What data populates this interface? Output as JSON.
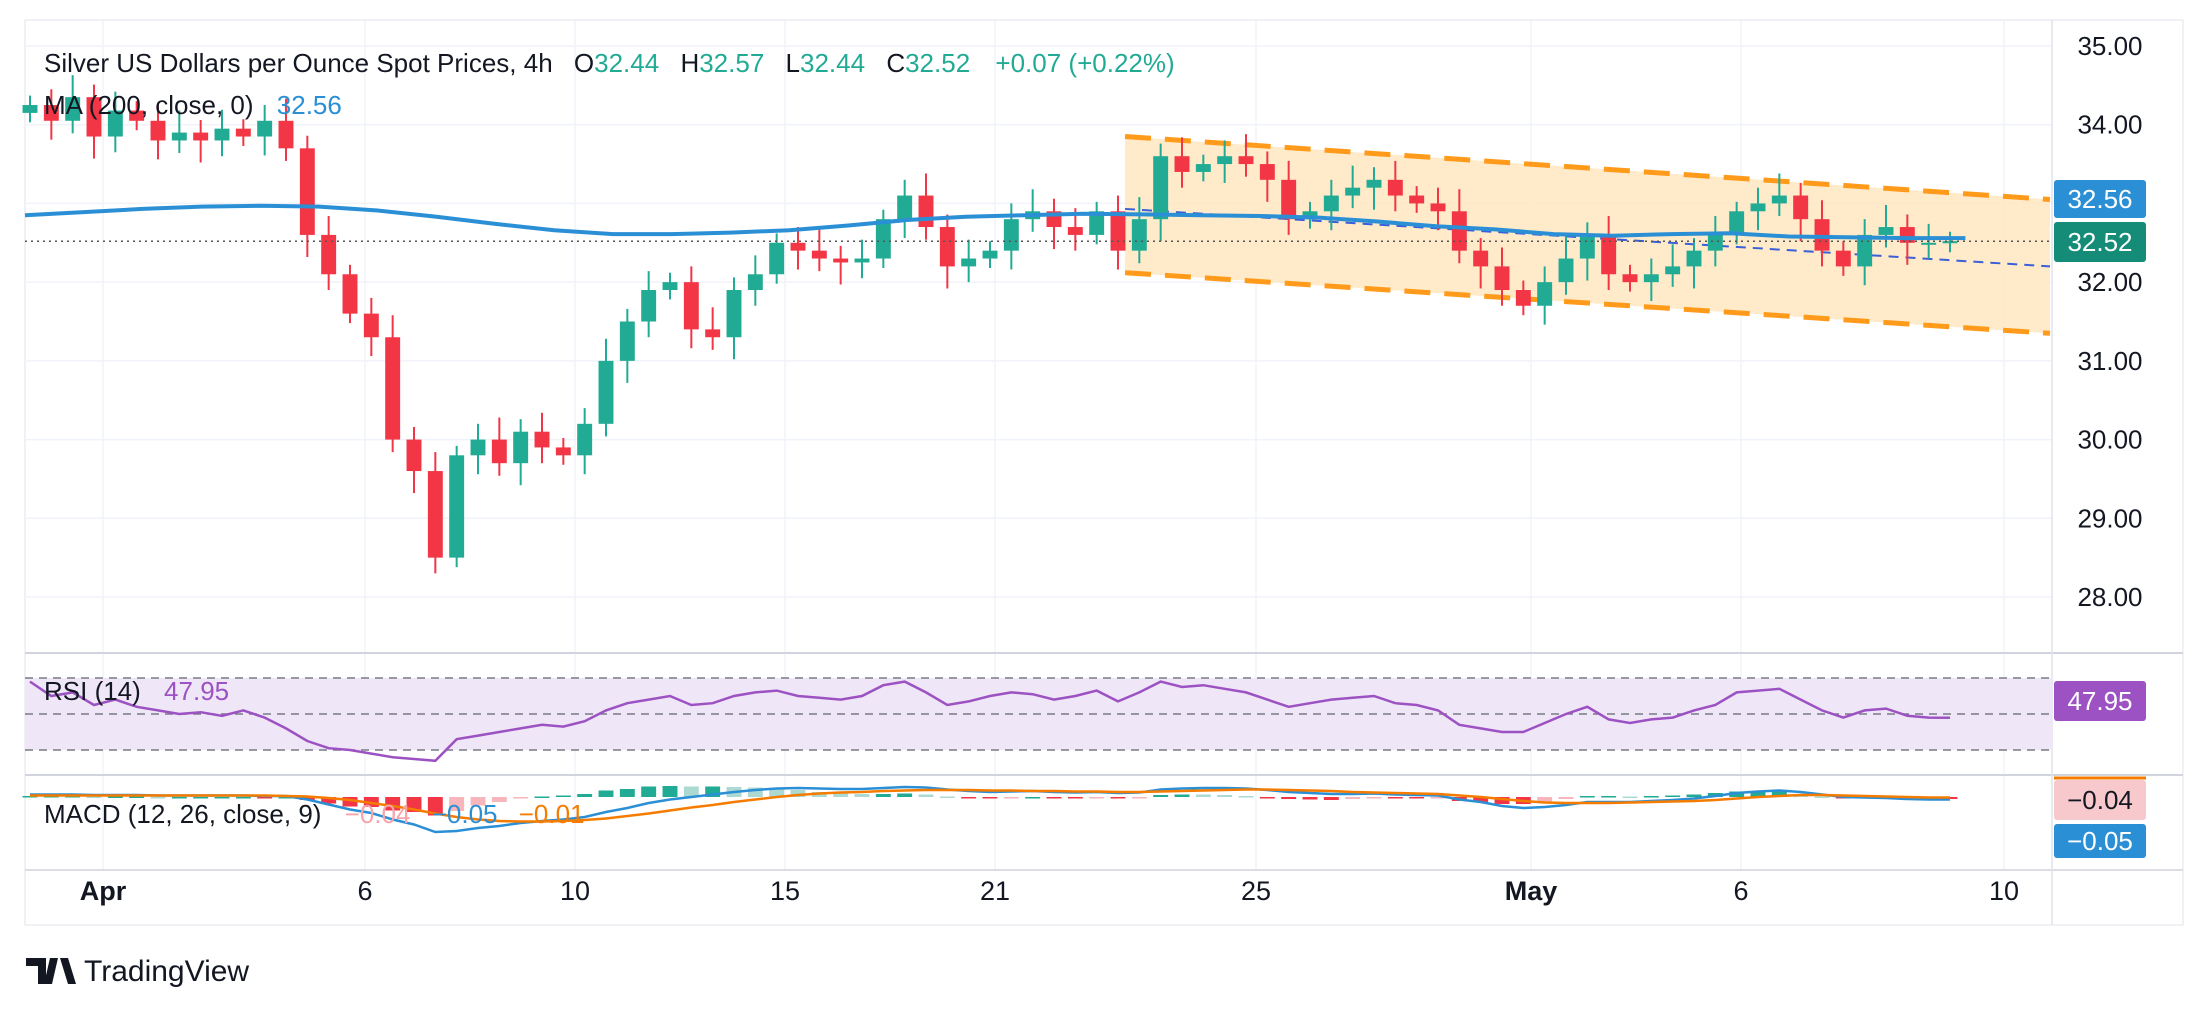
{
  "header": {
    "symbol": "Silver US Dollars per Ounce Spot Prices, 4h",
    "o_label": "O",
    "o_value": "32.44",
    "h_label": "H",
    "h_value": "32.57",
    "l_label": "L",
    "l_value": "32.44",
    "c_label": "C",
    "c_value": "32.52",
    "change": "+0.07 (+0.22%)"
  },
  "ma_legend": {
    "label": "MA (200, close, 0)",
    "value": "32.56"
  },
  "rsi_legend": {
    "label": "RSI (14)",
    "value": "47.95"
  },
  "macd_legend": {
    "label": "MACD (12, 26, close, 9)",
    "hist": "−0.04",
    "macd": "−0.05",
    "signal": "−0.01"
  },
  "badges": {
    "ma": "32.56",
    "close": "32.52",
    "rsi": "47.95",
    "macd_hist": "−0.04",
    "macd": "−0.05"
  },
  "brand": {
    "name": "TradingView"
  },
  "colors": {
    "up": "#22ab94",
    "down": "#f23645",
    "ma": "#2b8fd6",
    "rsi": "#9c52c2",
    "rsi_band": "#efe6f7",
    "channel_fill": "#ffe6c0",
    "channel_line": "#ff9a1a",
    "trend_dash": "#3a5fd9",
    "macd_line": "#2b8fd6",
    "signal_line": "#f57c00",
    "close_badge": "#148c78",
    "ma_badge": "#2b8fd6",
    "rsi_badge": "#9c52c2",
    "text": "#131722",
    "axis_text": "#131722",
    "grid": "#f0f3fa"
  },
  "chart_data": [
    {
      "type": "candlestick",
      "title": "Silver US Dollars per Ounce Spot Prices, 4h",
      "x_tick_labels": [
        "Apr",
        "6",
        "10",
        "15",
        "21",
        "25",
        "May",
        "6",
        "10"
      ],
      "y_ticks": [
        35.0,
        34.0,
        33.0,
        32.0,
        31.0,
        30.0,
        29.0,
        28.0
      ],
      "ylim": [
        27.3,
        35.2
      ],
      "grid": true,
      "last_close": 32.52,
      "ma200_last": 32.56,
      "ma200": [
        32.85,
        32.89,
        32.93,
        32.96,
        32.97,
        32.96,
        32.91,
        32.83,
        32.74,
        32.66,
        32.61,
        32.61,
        32.63,
        32.66,
        32.72,
        32.79,
        32.83,
        32.85,
        32.87,
        32.86,
        32.85,
        32.84,
        32.82,
        32.77,
        32.71,
        32.67,
        32.61,
        32.59,
        32.61,
        32.62,
        32.58,
        32.57,
        32.56,
        32.56
      ],
      "closes": [
        34.25,
        34.05,
        34.35,
        33.85,
        34.18,
        34.05,
        33.8,
        33.9,
        33.8,
        33.95,
        33.85,
        34.05,
        33.7,
        32.6,
        32.1,
        31.6,
        31.3,
        30.0,
        29.6,
        28.5,
        29.8,
        30.0,
        29.7,
        30.1,
        29.9,
        29.8,
        30.2,
        31.0,
        31.5,
        31.9,
        32.0,
        31.4,
        31.3,
        31.9,
        32.1,
        32.5,
        32.4,
        32.3,
        32.25,
        32.3,
        32.8,
        33.1,
        32.7,
        32.2,
        32.3,
        32.4,
        32.8,
        32.9,
        32.7,
        32.6,
        32.9,
        32.4,
        32.8,
        33.6,
        33.4,
        33.5,
        33.6,
        33.5,
        33.3,
        32.8,
        32.9,
        33.1,
        33.2,
        33.3,
        33.1,
        33.0,
        32.9,
        32.4,
        32.2,
        31.9,
        31.7,
        32.0,
        32.3,
        32.6,
        32.1,
        32.0,
        32.1,
        32.2,
        32.4,
        32.6,
        32.9,
        33.0,
        33.1,
        32.8,
        32.4,
        32.2,
        32.6,
        32.7,
        32.5,
        32.5,
        32.52
      ],
      "trend_channel": {
        "upper": [
          33.85,
          33.05
        ],
        "lower": [
          32.12,
          31.35
        ]
      }
    },
    {
      "type": "line",
      "title": "RSI (14)",
      "last_value": 47.95,
      "bands": [
        70,
        50,
        30
      ],
      "values": [
        68,
        60,
        62,
        55,
        58,
        54,
        52,
        50,
        51,
        49,
        52,
        48,
        42,
        35,
        31,
        30,
        28,
        26,
        25,
        24,
        36,
        38,
        40,
        42,
        44,
        43,
        46,
        52,
        56,
        58,
        60,
        55,
        56,
        60,
        62,
        63,
        60,
        59,
        58,
        60,
        66,
        68,
        62,
        55,
        57,
        60,
        62,
        61,
        58,
        60,
        63,
        57,
        62,
        68,
        65,
        66,
        64,
        62,
        58,
        54,
        56,
        58,
        59,
        60,
        56,
        55,
        52,
        44,
        42,
        40,
        40,
        45,
        50,
        54,
        47,
        45,
        47,
        48,
        52,
        55,
        62,
        63,
        64,
        58,
        52,
        48,
        52,
        53,
        49,
        48,
        47.95
      ]
    },
    {
      "type": "bar+line",
      "title": "MACD (12, 26, close, 9)",
      "histogram_last": -0.04,
      "macd_last": -0.05,
      "signal_last": -0.01,
      "macd": [
        0.05,
        0.05,
        0.05,
        0.04,
        0.04,
        0.04,
        0.03,
        0.03,
        0.03,
        0.03,
        0.03,
        0.02,
        0.02,
        -0.05,
        -0.15,
        -0.25,
        -0.32,
        -0.45,
        -0.55,
        -0.7,
        -0.68,
        -0.62,
        -0.58,
        -0.52,
        -0.48,
        -0.45,
        -0.4,
        -0.3,
        -0.22,
        -0.12,
        -0.05,
        0.0,
        0.05,
        0.1,
        0.14,
        0.17,
        0.18,
        0.17,
        0.16,
        0.16,
        0.18,
        0.2,
        0.19,
        0.15,
        0.12,
        0.1,
        0.11,
        0.12,
        0.1,
        0.09,
        0.1,
        0.08,
        0.09,
        0.15,
        0.17,
        0.18,
        0.18,
        0.17,
        0.14,
        0.1,
        0.08,
        0.06,
        0.06,
        0.07,
        0.05,
        0.04,
        0.03,
        -0.05,
        -0.1,
        -0.18,
        -0.22,
        -0.2,
        -0.16,
        -0.1,
        -0.1,
        -0.1,
        -0.08,
        -0.06,
        -0.03,
        0.02,
        0.08,
        0.11,
        0.13,
        0.1,
        0.05,
        0.0,
        -0.01,
        -0.02,
        -0.04,
        -0.05,
        -0.05
      ],
      "signal": [
        0.03,
        0.03,
        0.03,
        0.03,
        0.03,
        0.03,
        0.03,
        0.03,
        0.03,
        0.03,
        0.03,
        0.03,
        0.02,
        0.01,
        -0.02,
        -0.06,
        -0.12,
        -0.18,
        -0.25,
        -0.33,
        -0.4,
        -0.45,
        -0.48,
        -0.49,
        -0.49,
        -0.48,
        -0.46,
        -0.43,
        -0.38,
        -0.33,
        -0.27,
        -0.21,
        -0.16,
        -0.1,
        -0.05,
        0.0,
        0.04,
        0.07,
        0.09,
        0.1,
        0.12,
        0.13,
        0.14,
        0.14,
        0.14,
        0.13,
        0.13,
        0.12,
        0.12,
        0.11,
        0.11,
        0.1,
        0.1,
        0.11,
        0.12,
        0.13,
        0.14,
        0.15,
        0.15,
        0.14,
        0.13,
        0.12,
        0.1,
        0.09,
        0.08,
        0.07,
        0.06,
        0.03,
        0.0,
        -0.04,
        -0.08,
        -0.11,
        -0.12,
        -0.12,
        -0.12,
        -0.11,
        -0.1,
        -0.09,
        -0.08,
        -0.06,
        -0.03,
        0.0,
        0.02,
        0.04,
        0.04,
        0.03,
        0.02,
        0.01,
        0.0,
        -0.01,
        -0.01
      ]
    }
  ]
}
